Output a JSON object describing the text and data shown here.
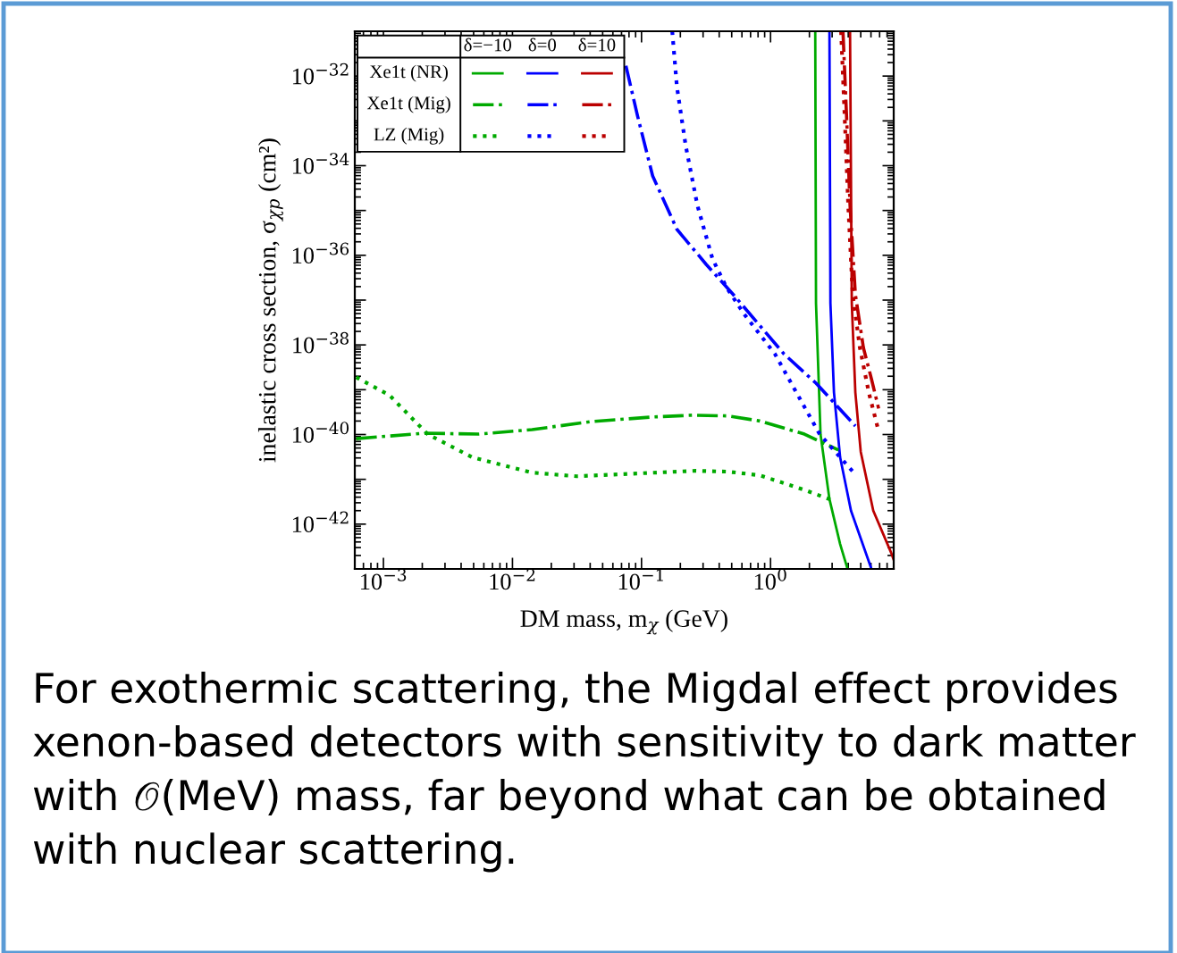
{
  "chart_data": {
    "type": "line",
    "xlabel": "DM mass, m$_{χ}$ (GeV)",
    "ylabel": "inelastic cross section, σ$_{χp}$ (cm²)",
    "log": "xy",
    "xlim": [
      0.0006,
      9
    ],
    "ylim": [
      1e-43,
      1e-31
    ],
    "xticks": [
      {
        "value": 0.001,
        "label": "10$^{−3}$"
      },
      {
        "value": 0.01,
        "label": "10$^{−2}$"
      },
      {
        "value": 0.1,
        "label": "10$^{−1}$"
      },
      {
        "value": 1,
        "label": "10$^{0}$"
      }
    ],
    "yticks": [
      {
        "value": 1e-42,
        "label": "10$^{−42}$"
      },
      {
        "value": 1e-41,
        "label": null
      },
      {
        "value": 1e-40,
        "label": "10$^{−40}$"
      },
      {
        "value": 1e-39,
        "label": null
      },
      {
        "value": 1e-38,
        "label": "10$^{−38}$"
      },
      {
        "value": 1e-37,
        "label": null
      },
      {
        "value": 1e-36,
        "label": "10$^{−36}$"
      },
      {
        "value": 1e-35,
        "label": null
      },
      {
        "value": 1e-34,
        "label": "10$^{−34}$"
      },
      {
        "value": 1e-33,
        "label": null
      },
      {
        "value": 1e-32,
        "label": "10$^{−32}$"
      }
    ],
    "grid": false,
    "legend": "top left",
    "annotations": [
      "δ=−10",
      "δ=0",
      "δ=10",
      "For exothermic scattering, the Migdal effect provides xenon-based detectors with sensitivity to dark matter with 𝒪(MeV) mass, far beyond what can be obtained with nuclear scattering."
    ],
    "series": [
      {
        "name": "Xe1t (NR)",
        "color": "#00aa00",
        "line_style": "solid",
        "x": [
          2.22,
          2.25,
          2.44,
          2.86,
          3.46,
          3.95
        ],
        "values": [
          1e-31,
          8.5e-38,
          1e-40,
          3.6e-42,
          3.6e-43,
          1e-43
        ]
      },
      {
        "color": "#0000ff",
        "line_style": "solid",
        "x": [
          2.86,
          2.91,
          3.1,
          3.46,
          4.2,
          6.05
        ],
        "values": [
          1e-31,
          8.5e-38,
          8.7e-40,
          3.1e-41,
          2e-42,
          1e-43
        ]
      },
      {
        "color": "#bb0000",
        "line_style": "solid",
        "x": [
          4.13,
          4.26,
          4.54,
          5.0,
          6.25,
          8.6,
          9.0
        ],
        "values": [
          1e-31,
          8.5e-38,
          8.7e-40,
          4.1e-41,
          2e-42,
          2.3e-43,
          1.6e-43
        ]
      },
      {
        "name": "Xe1t (Mig)",
        "color": "#00aa00",
        "line_style": "dashdot",
        "x": [
          0.000615,
          0.0021,
          0.00546,
          0.0142,
          0.0413,
          0.118,
          0.25,
          0.473,
          0.826,
          1.83,
          3.36
        ],
        "values": [
          8.1e-41,
          1.07e-40,
          1.02e-40,
          1.29e-40,
          1.95e-40,
          2.45e-40,
          2.7e-40,
          2.6e-40,
          2e-40,
          1.02e-40,
          4.5e-41
        ]
      },
      {
        "color": "#0000ff",
        "line_style": "dashdot",
        "x": [
          0.0757,
          0.0931,
          0.122,
          0.188,
          0.318,
          0.512,
          1.27,
          2.25,
          4.54
        ],
        "values": [
          1.7e-32,
          1.3e-33,
          5.9e-35,
          3.8e-36,
          6.2e-37,
          1.35e-37,
          6.3e-39,
          1.4e-39,
          1.55e-40
        ]
      },
      {
        "color": "#bb0000",
        "line_style": "dashdot",
        "x": [
          3.64,
          3.88,
          4.13,
          4.54,
          5.24,
          6.05,
          6.88
        ],
        "values": [
          1e-31,
          1.3e-33,
          1.3e-35,
          1.35e-37,
          8.7e-39,
          1.74e-39,
          3.8e-40
        ]
      },
      {
        "name": "LZ (Mig)",
        "color": "#00aa00",
        "line_style": "dotted",
        "x": [
          0.000615,
          0.00111,
          0.0022,
          0.00489,
          0.0142,
          0.0315,
          0.0916,
          0.262,
          0.473,
          0.826,
          1.83,
          3.2
        ],
        "values": [
          1.9e-39,
          7.6e-40,
          1.02e-40,
          3.1e-41,
          1.41e-41,
          1.17e-41,
          1.35e-41,
          1.55e-41,
          1.48e-41,
          1.23e-41,
          5.8e-42,
          3.2e-42
        ]
      },
      {
        "color": "#0000ff",
        "line_style": "dotted",
        "x": [
          0.173,
          0.188,
          0.22,
          0.271,
          0.355,
          0.458,
          0.63,
          1.08,
          2.4,
          4.54
        ],
        "values": [
          1e-31,
          5.8e-33,
          2.8e-34,
          1.3e-35,
          8.3e-37,
          1.86e-37,
          4.7e-38,
          6.3e-39,
          1.02e-40,
          1.29e-41
        ]
      },
      {
        "color": "#bb0000",
        "line_style": "dotted",
        "x": [
          3.52,
          3.75,
          4.0,
          4.33,
          4.92,
          5.77,
          6.77
        ],
        "values": [
          1e-31,
          1.3e-33,
          1.3e-35,
          1.35e-37,
          8.7e-39,
          8.7e-40,
          1.41e-40
        ]
      }
    ]
  }
}
